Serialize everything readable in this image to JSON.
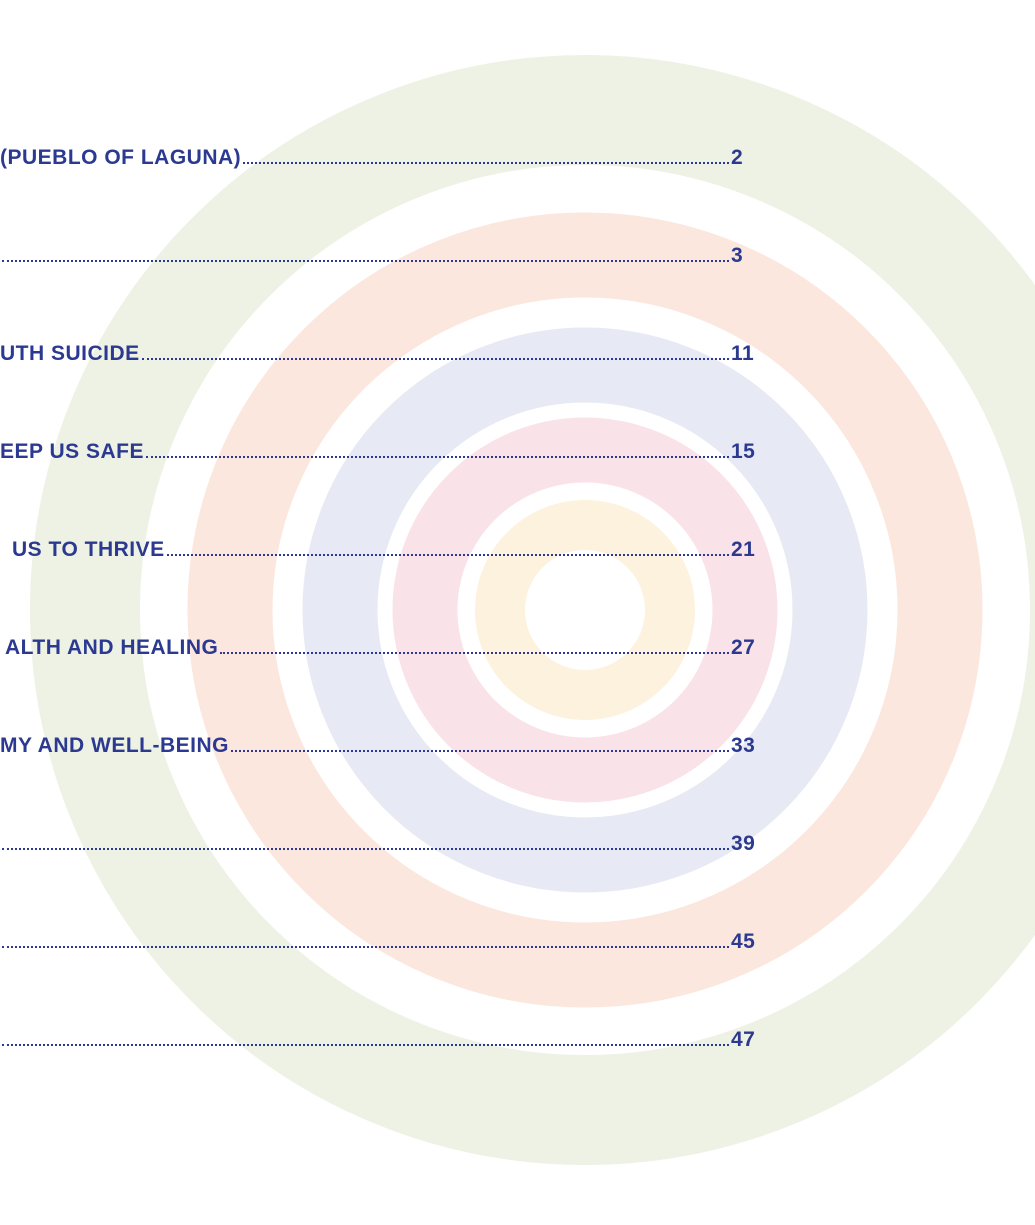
{
  "entries": [
    {
      "title": "(PUEBLO OF LAGUNA)",
      "page": 2
    },
    {
      "page": 3
    },
    {
      "title": "UTH SUICIDE",
      "page": 11
    },
    {
      "title": "EEP US SAFE",
      "page": 15
    },
    {
      "title": "US TO THRIVE",
      "page": 21
    },
    {
      "title": "ALTH AND HEALING",
      "page": 27
    },
    {
      "title": "MY AND WELL-BEING",
      "page": 33
    },
    {
      "page": 39
    },
    {
      "page": 45
    },
    {
      "page": 47
    }
  ]
}
